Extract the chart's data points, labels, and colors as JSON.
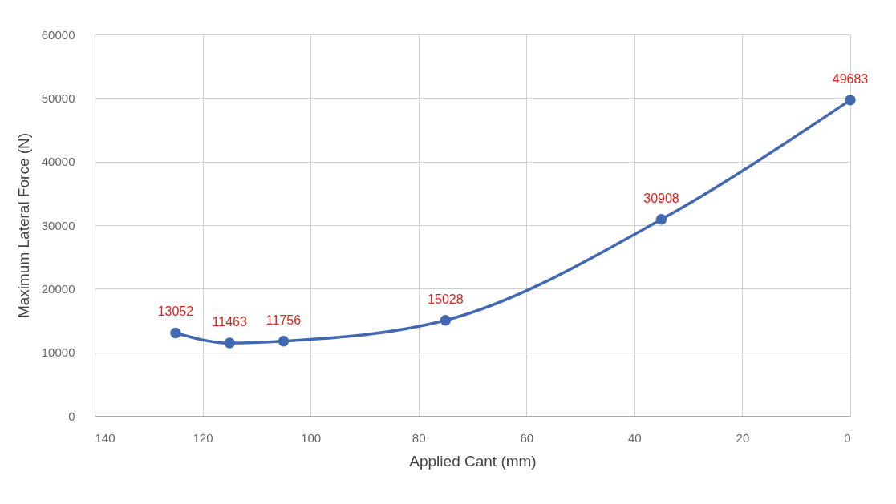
{
  "chart_data": {
    "type": "line",
    "xlabel": "Applied Cant (mm)",
    "ylabel": "Maximum Lateral Force (N)",
    "x": [
      125,
      115,
      105,
      75,
      35,
      0
    ],
    "series": [
      {
        "color": "#4268b2",
        "values": [
          13052,
          11463,
          11756,
          15028,
          30908,
          49683
        ]
      }
    ],
    "xlim": [
      140,
      0
    ],
    "xticks": [
      140,
      120,
      100,
      80,
      60,
      40,
      20,
      0
    ],
    "ylim": [
      0,
      60000
    ],
    "yticks": [
      0,
      10000,
      20000,
      30000,
      40000,
      50000,
      60000
    ],
    "grid": true,
    "marker": "circle",
    "line_style": "solid",
    "data_labels": true
  }
}
